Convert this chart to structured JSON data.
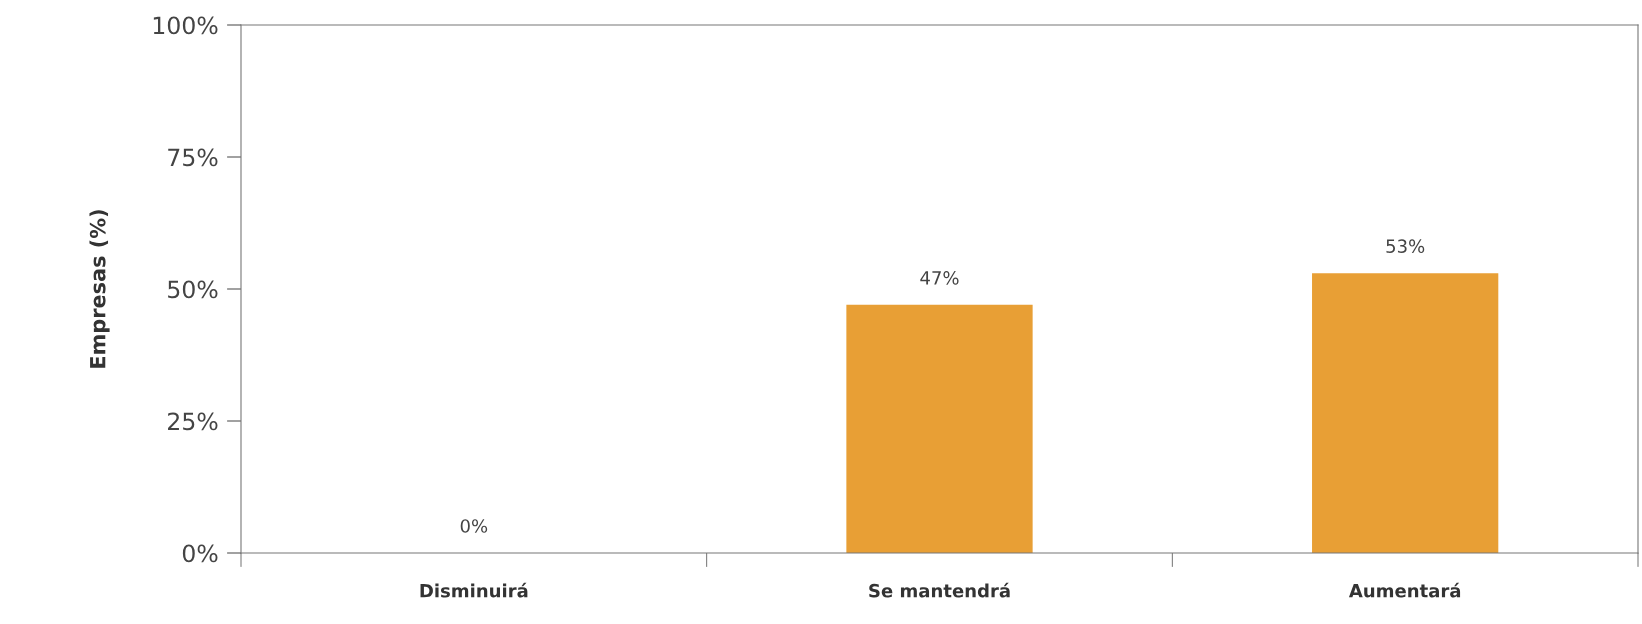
{
  "chart_data": {
    "type": "bar",
    "ylabel": "Empresas (%)",
    "categories": [
      "Disminuirá",
      "Se mantendrá",
      "Aumentará"
    ],
    "values": [
      0,
      47,
      53
    ],
    "color": "#e89f35",
    "value_labels": [
      "0%",
      "47%",
      "53%"
    ],
    "ylim": [
      0,
      100
    ],
    "yticks": [
      {
        "value": 0,
        "label": "0%"
      },
      {
        "value": 25,
        "label": "25%"
      },
      {
        "value": 50,
        "label": "50%"
      },
      {
        "value": 75,
        "label": "75%"
      },
      {
        "value": 100,
        "label": "100%"
      }
    ],
    "grid": false,
    "legend": false
  }
}
